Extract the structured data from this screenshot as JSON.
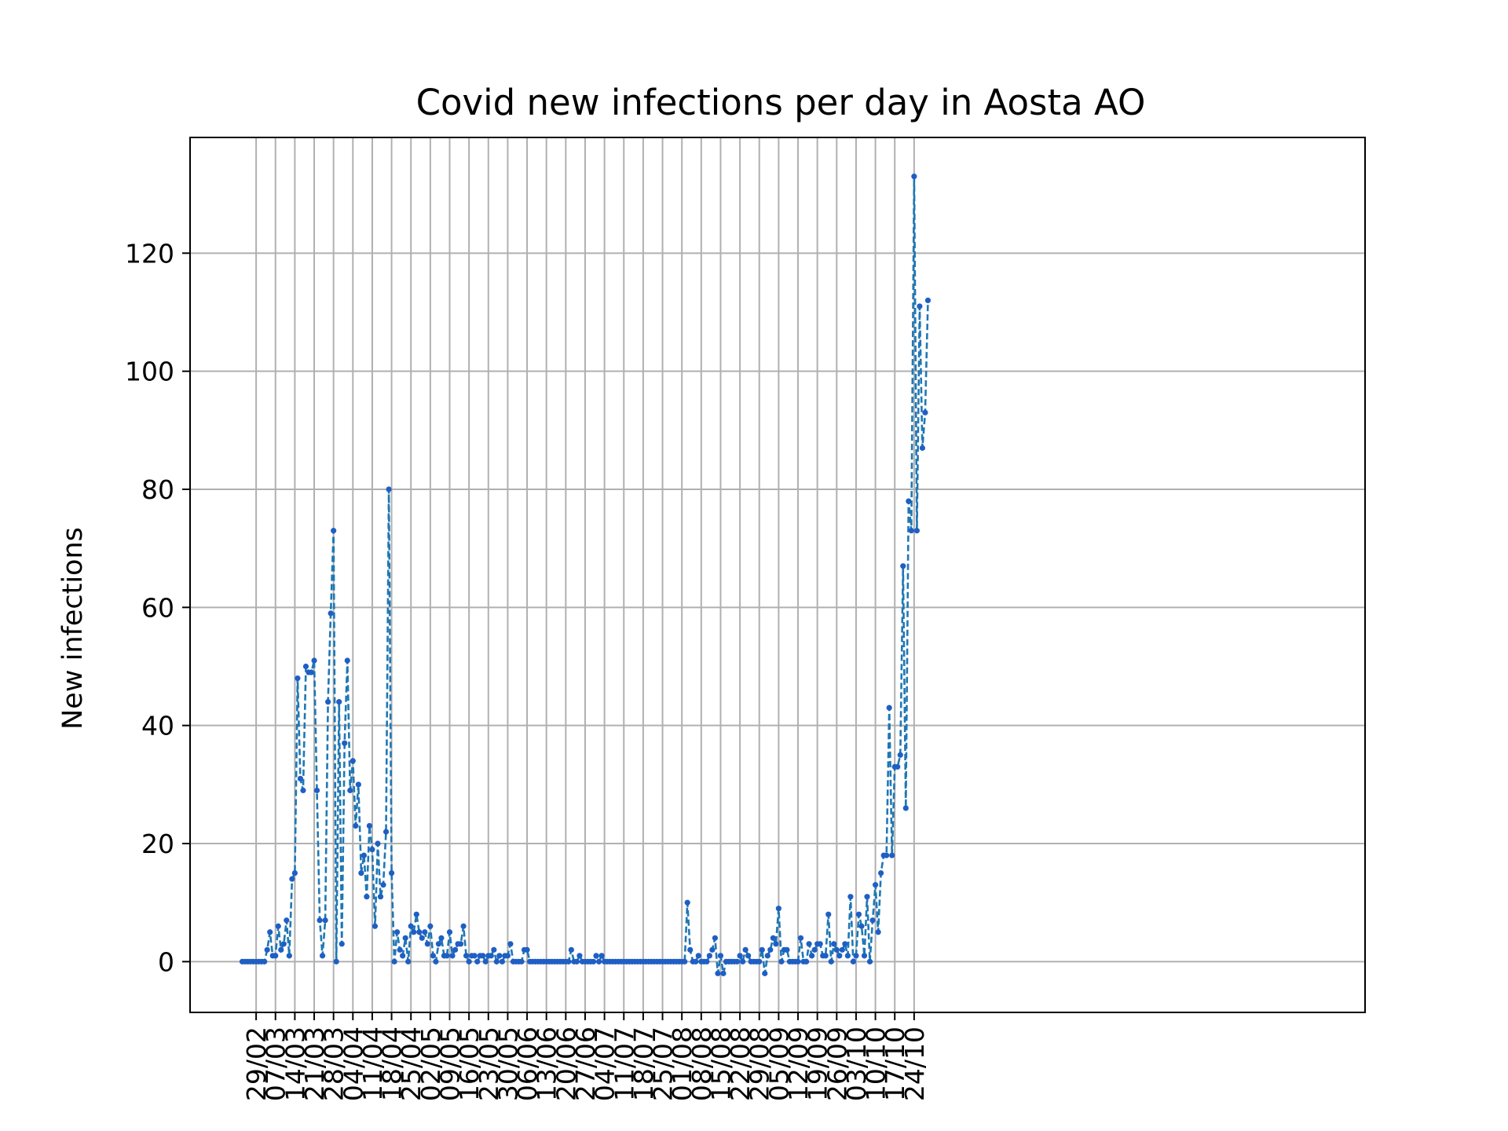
{
  "chart_data": {
    "type": "line",
    "title": "Covid new infections per day in Aosta AO",
    "xlabel": "",
    "ylabel": "New infections",
    "x_start": "24/02",
    "x_end": "24/10",
    "x_ticks": [
      "29/02",
      "07/03",
      "14/03",
      "21/03",
      "28/03",
      "04/04",
      "11/04",
      "18/04",
      "25/04",
      "02/05",
      "09/05",
      "16/05",
      "23/05",
      "30/05",
      "06/06",
      "13/06",
      "20/06",
      "27/06",
      "04/07",
      "11/07",
      "18/07",
      "25/07",
      "01/08",
      "08/08",
      "15/08",
      "22/08",
      "29/08",
      "05/09",
      "12/09",
      "19/09",
      "26/09",
      "03/10",
      "10/10",
      "17/10",
      "24/10"
    ],
    "y_ticks": [
      0,
      20,
      40,
      60,
      80,
      100,
      120
    ],
    "ylim": [
      -8.6,
      139.6
    ],
    "grid": true,
    "line_style": "dashed",
    "marker": "dot",
    "colors": {
      "line": "#1f77b4",
      "marker": "#1f5fc4",
      "grid": "#b0b0b0"
    },
    "series": [
      {
        "values": [
          0,
          0,
          0,
          0,
          0,
          0,
          0,
          0,
          0,
          2,
          5,
          1,
          1,
          6,
          2,
          3,
          7,
          1,
          14,
          15,
          48,
          31,
          29,
          50,
          49,
          49,
          51,
          29,
          7,
          1,
          7,
          44,
          59,
          73,
          0,
          44,
          3,
          37,
          51,
          29,
          34,
          23,
          30,
          15,
          18,
          11,
          23,
          19,
          6,
          20,
          11,
          13,
          22,
          80,
          15,
          0,
          5,
          2,
          1,
          4,
          0,
          6,
          5,
          8,
          5,
          4,
          5,
          3,
          6,
          1,
          0,
          3,
          4,
          1,
          1,
          5,
          1,
          2,
          3,
          3,
          6,
          1,
          0,
          1,
          1,
          0,
          1,
          1,
          0,
          1,
          1,
          2,
          0,
          1,
          0,
          1,
          1,
          3,
          0,
          0,
          0,
          0,
          2,
          2,
          0,
          0,
          0,
          0,
          0,
          0,
          0,
          0,
          0,
          0,
          0,
          0,
          0,
          0,
          0,
          2,
          0,
          0,
          1,
          0,
          0,
          0,
          0,
          0,
          1,
          0,
          1,
          0,
          0,
          0,
          0,
          0,
          0,
          0,
          0,
          0,
          0,
          0,
          0,
          0,
          0,
          0,
          0,
          0,
          0,
          0,
          0,
          0,
          0,
          0,
          0,
          0,
          0,
          0,
          0,
          0,
          0,
          10,
          2,
          0,
          0,
          1,
          0,
          0,
          0,
          1,
          2,
          4,
          -2,
          1,
          -2,
          0,
          0,
          0,
          0,
          0,
          1,
          0,
          2,
          1,
          0,
          0,
          0,
          0,
          2,
          -2,
          1,
          2,
          4,
          3,
          9,
          0,
          2,
          2,
          0,
          0,
          0,
          0,
          4,
          0,
          0,
          3,
          1,
          2,
          3,
          3,
          1,
          1,
          8,
          0,
          3,
          2,
          1,
          2,
          3,
          1,
          11,
          0,
          1,
          8,
          6,
          1,
          11,
          0,
          7,
          13,
          5,
          15,
          18,
          18,
          43,
          18,
          33,
          33,
          35,
          67,
          26,
          78,
          73,
          133,
          73,
          111,
          87,
          93,
          112
        ]
      }
    ]
  }
}
